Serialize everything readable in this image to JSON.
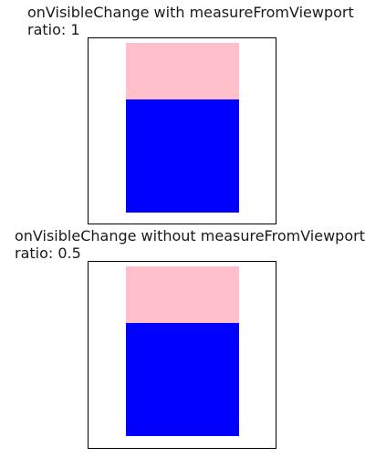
{
  "sections": [
    {
      "title": "onVisibleChange with measureFromViewport",
      "ratio_text": "ratio: 1",
      "colors": {
        "top": "#FFC0CB",
        "bottom": "#0000FF"
      }
    },
    {
      "title": "onVisibleChange without measureFromViewport",
      "ratio_text": "ratio: 0.5",
      "colors": {
        "top": "#FFC0CB",
        "bottom": "#0000FF"
      }
    }
  ]
}
